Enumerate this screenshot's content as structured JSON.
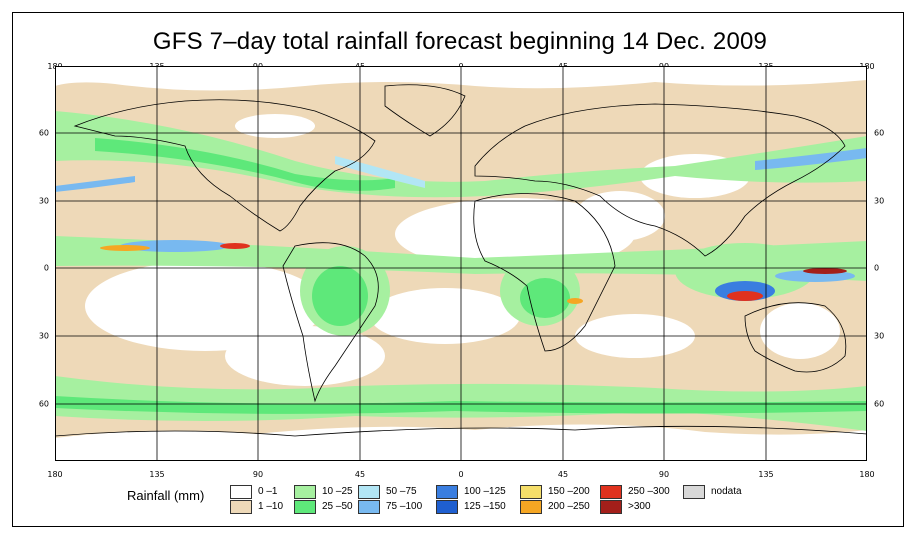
{
  "title": "GFS 7–day total rainfall forecast beginning 14 Dec. 2009",
  "lon_ticks": [
    "180",
    "135",
    "90",
    "45",
    "0",
    "45",
    "90",
    "135",
    "180"
  ],
  "lat_ticks": [
    "60",
    "30",
    "0",
    "30",
    "60"
  ],
  "legend": {
    "title": "Rainfall (mm)",
    "items": [
      {
        "label": "0 –1",
        "color": "#ffffff"
      },
      {
        "label": "1 –10",
        "color": "#eed9b8"
      },
      {
        "label": "10 –25",
        "color": "#a6f0a0"
      },
      {
        "label": "25 –50",
        "color": "#5ee87a"
      },
      {
        "label": "50 –75",
        "color": "#b2e6f5"
      },
      {
        "label": "75 –100",
        "color": "#78b9f0"
      },
      {
        "label": "100 –125",
        "color": "#3a7ee0"
      },
      {
        "label": "125 –150",
        "color": "#1f5fd0"
      },
      {
        "label": "150 –200",
        "color": "#f5de6a"
      },
      {
        "label": "200 –250",
        "color": "#f5a623"
      },
      {
        "label": "250 –300",
        "color": "#e0321e"
      },
      {
        "label": ">300",
        "color": "#a31f1a"
      },
      {
        "label": "nodata",
        "color": "#d8d8d8"
      }
    ]
  }
}
